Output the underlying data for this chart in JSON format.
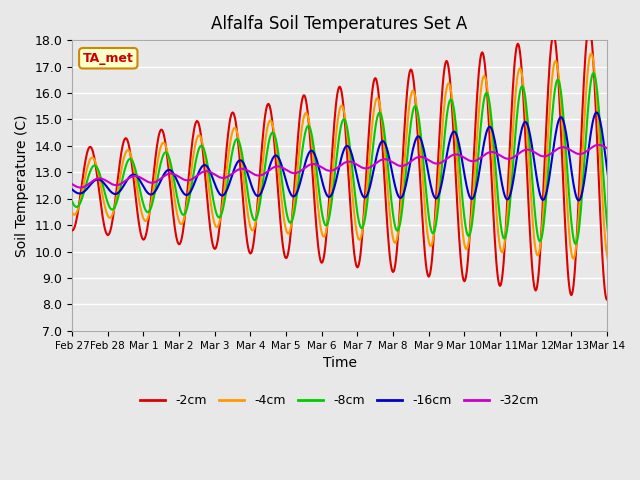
{
  "title": "Alfalfa Soil Temperatures Set A",
  "xlabel": "Time",
  "ylabel": "Soil Temperature (C)",
  "ylim": [
    7.0,
    18.0
  ],
  "yticks": [
    7.0,
    8.0,
    9.0,
    10.0,
    11.0,
    12.0,
    13.0,
    14.0,
    15.0,
    16.0,
    17.0,
    18.0
  ],
  "xtick_labels": [
    "Feb 27",
    "Feb 28",
    "Mar 1",
    "Mar 2",
    "Mar 3",
    "Mar 4",
    "Mar 5",
    "Mar 6",
    "Mar 7",
    "Mar 8",
    "Mar 9",
    "Mar 10",
    "Mar 11",
    "Mar 12",
    "Mar 13",
    "Mar 14"
  ],
  "colors": {
    "-2cm": "#dd0000",
    "-4cm": "#ff9900",
    "-8cm": "#00cc00",
    "-16cm": "#0000cc",
    "-32cm": "#cc00cc"
  },
  "legend_label": "TA_met",
  "bg_color": "#e8e8e8",
  "plot_bg_color": "#e8e8e8",
  "grid_color": "#ffffff",
  "linewidth": 1.5,
  "n_days": 16,
  "pts_per_day": 48
}
